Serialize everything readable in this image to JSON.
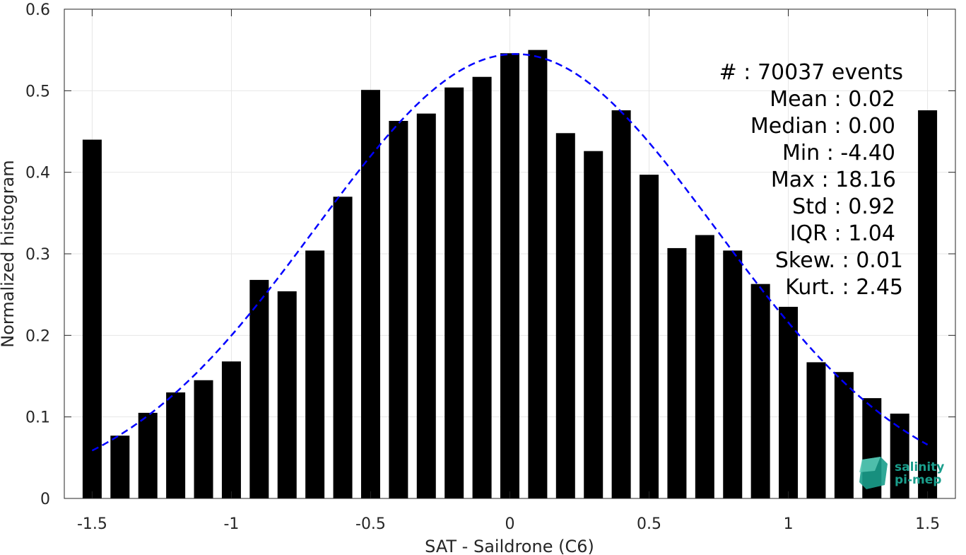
{
  "chart_data": {
    "type": "bar",
    "xlabel": "SAT - Saildrone (C6)",
    "ylabel": "Normalized histogram",
    "xlim": [
      -1.6,
      1.6
    ],
    "ylim": [
      0,
      0.6
    ],
    "xticks": [
      -1.5,
      -1,
      -0.5,
      0,
      0.5,
      1,
      1.5
    ],
    "xtick_labels": [
      "-1.5",
      "-1",
      "-0.5",
      "0",
      "0.5",
      "1",
      "1.5"
    ],
    "yticks": [
      0,
      0.1,
      0.2,
      0.3,
      0.4,
      0.5,
      0.6
    ],
    "ytick_labels": [
      "0",
      "0.1",
      "0.2",
      "0.3",
      "0.4",
      "0.5",
      "0.6"
    ],
    "grid": true,
    "bar_color": "#000000",
    "fit_color": "#0000ff",
    "bars": {
      "x": [
        -1.5,
        -1.4,
        -1.3,
        -1.2,
        -1.1,
        -1.0,
        -0.9,
        -0.8,
        -0.7,
        -0.6,
        -0.5,
        -0.4,
        -0.3,
        -0.2,
        -0.1,
        0.0,
        0.1,
        0.2,
        0.3,
        0.4,
        0.5,
        0.6,
        0.7,
        0.8,
        0.9,
        1.0,
        1.1,
        1.2,
        1.3,
        1.4,
        1.5
      ],
      "values": [
        0.44,
        0.077,
        0.105,
        0.13,
        0.145,
        0.168,
        0.268,
        0.254,
        0.304,
        0.37,
        0.501,
        0.463,
        0.472,
        0.504,
        0.517,
        0.546,
        0.55,
        0.448,
        0.426,
        0.476,
        0.397,
        0.307,
        0.323,
        0.304,
        0.263,
        0.235,
        0.167,
        0.155,
        0.123,
        0.104,
        0.476
      ]
    },
    "fit": {
      "style": "dashed",
      "mean": 0.02,
      "std": 0.72,
      "peak": 0.545,
      "x_range": [
        -1.5,
        1.5
      ]
    },
    "stats": [
      "#  : 70037 events",
      "Mean : 0.02",
      "Median : 0.00",
      "Min : -4.40",
      "Max : 18.16",
      "Std : 0.92",
      "IQR : 1.04",
      "Skew. : 0.01",
      "Kurt. : 2.45"
    ],
    "logo": {
      "line1": "salinity",
      "line2": "pi-mep",
      "color": "#1a9e8c"
    }
  }
}
